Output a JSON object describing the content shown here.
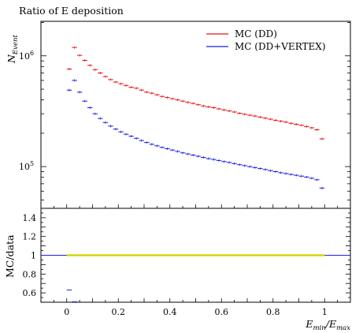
{
  "chart_data": {
    "title": "Ratio of E deposition",
    "panels": [
      {
        "name": "main",
        "type": "step",
        "ylabel": "N",
        "ylabel_sub": "Event",
        "yscale": "log",
        "ylim": [
          42000,
          2050000
        ],
        "yticks": [
          {
            "value": 100000,
            "label": "10",
            "exp": "5"
          },
          {
            "value": 1000000,
            "label": "10",
            "exp": "6"
          }
        ],
        "series": [
          {
            "name": "MC (DD)",
            "color": "#e8141b",
            "bins": [
              [
                0.0,
                0.02,
                760000
              ],
              [
                0.02,
                0.04,
                1190000
              ],
              [
                0.04,
                0.06,
                1010000
              ],
              [
                0.06,
                0.08,
                910000
              ],
              [
                0.08,
                0.1,
                820000
              ],
              [
                0.1,
                0.12,
                750000
              ],
              [
                0.12,
                0.14,
                700000
              ],
              [
                0.14,
                0.16,
                650000
              ],
              [
                0.16,
                0.18,
                610000
              ],
              [
                0.18,
                0.2,
                580000
              ],
              [
                0.2,
                0.22,
                560000
              ],
              [
                0.22,
                0.24,
                540000
              ],
              [
                0.24,
                0.26,
                520000
              ],
              [
                0.26,
                0.28,
                510000
              ],
              [
                0.28,
                0.3,
                490000
              ],
              [
                0.3,
                0.32,
                470000
              ],
              [
                0.32,
                0.34,
                460000
              ],
              [
                0.34,
                0.36,
                445000
              ],
              [
                0.36,
                0.38,
                430000
              ],
              [
                0.38,
                0.4,
                420000
              ],
              [
                0.4,
                0.42,
                410000
              ],
              [
                0.42,
                0.44,
                400000
              ],
              [
                0.44,
                0.46,
                390000
              ],
              [
                0.46,
                0.48,
                380000
              ],
              [
                0.48,
                0.5,
                372000
              ],
              [
                0.5,
                0.52,
                362000
              ],
              [
                0.52,
                0.54,
                353000
              ],
              [
                0.54,
                0.56,
                346000
              ],
              [
                0.56,
                0.58,
                340000
              ],
              [
                0.58,
                0.6,
                332000
              ],
              [
                0.6,
                0.62,
                325000
              ],
              [
                0.62,
                0.64,
                318000
              ],
              [
                0.64,
                0.66,
                311000
              ],
              [
                0.66,
                0.68,
                303000
              ],
              [
                0.68,
                0.7,
                297000
              ],
              [
                0.7,
                0.72,
                291000
              ],
              [
                0.72,
                0.74,
                286000
              ],
              [
                0.74,
                0.76,
                280000
              ],
              [
                0.76,
                0.78,
                274000
              ],
              [
                0.78,
                0.8,
                268000
              ],
              [
                0.8,
                0.82,
                262000
              ],
              [
                0.82,
                0.84,
                257000
              ],
              [
                0.84,
                0.86,
                252000
              ],
              [
                0.86,
                0.88,
                246000
              ],
              [
                0.88,
                0.9,
                241000
              ],
              [
                0.9,
                0.92,
                236000
              ],
              [
                0.92,
                0.94,
                230000
              ],
              [
                0.94,
                0.96,
                224000
              ],
              [
                0.96,
                0.98,
                215000
              ],
              [
                0.98,
                1.0,
                178000
              ]
            ]
          },
          {
            "name": "MC (DD+VERTEX)",
            "color": "#1a22e0",
            "bins": [
              [
                0.0,
                0.02,
                490000
              ],
              [
                0.02,
                0.04,
                600000
              ],
              [
                0.04,
                0.06,
                470000
              ],
              [
                0.06,
                0.08,
                390000
              ],
              [
                0.08,
                0.1,
                340000
              ],
              [
                0.1,
                0.12,
                300000
              ],
              [
                0.12,
                0.14,
                272000
              ],
              [
                0.14,
                0.16,
                250000
              ],
              [
                0.16,
                0.18,
                232000
              ],
              [
                0.18,
                0.2,
                218000
              ],
              [
                0.2,
                0.22,
                206000
              ],
              [
                0.22,
                0.24,
                196000
              ],
              [
                0.24,
                0.26,
                188000
              ],
              [
                0.26,
                0.28,
                180000
              ],
              [
                0.28,
                0.3,
                172000
              ],
              [
                0.3,
                0.32,
                165000
              ],
              [
                0.32,
                0.34,
                159000
              ],
              [
                0.34,
                0.36,
                154000
              ],
              [
                0.36,
                0.38,
                149000
              ],
              [
                0.38,
                0.4,
                145000
              ],
              [
                0.4,
                0.42,
                141000
              ],
              [
                0.42,
                0.44,
                137000
              ],
              [
                0.44,
                0.46,
                133000
              ],
              [
                0.46,
                0.48,
                130000
              ],
              [
                0.48,
                0.5,
                127000
              ],
              [
                0.5,
                0.52,
                124000
              ],
              [
                0.52,
                0.54,
                121000
              ],
              [
                0.54,
                0.56,
                118000
              ],
              [
                0.56,
                0.58,
                116000
              ],
              [
                0.58,
                0.6,
                113500
              ],
              [
                0.6,
                0.62,
                111000
              ],
              [
                0.62,
                0.64,
                109000
              ],
              [
                0.64,
                0.66,
                106500
              ],
              [
                0.66,
                0.68,
                104000
              ],
              [
                0.68,
                0.7,
                102000
              ],
              [
                0.7,
                0.72,
                100000
              ],
              [
                0.72,
                0.74,
                98000
              ],
              [
                0.74,
                0.76,
                96000
              ],
              [
                0.76,
                0.78,
                94000
              ],
              [
                0.78,
                0.8,
                92000
              ],
              [
                0.8,
                0.82,
                90000
              ],
              [
                0.82,
                0.84,
                88000
              ],
              [
                0.84,
                0.86,
                86500
              ],
              [
                0.86,
                0.88,
                85000
              ],
              [
                0.88,
                0.9,
                83500
              ],
              [
                0.9,
                0.92,
                82000
              ],
              [
                0.92,
                0.94,
                80500
              ],
              [
                0.94,
                0.96,
                78500
              ],
              [
                0.96,
                0.98,
                76000
              ],
              [
                0.98,
                1.0,
                64000
              ]
            ]
          }
        ],
        "legend": "top-right"
      },
      {
        "name": "ratio",
        "type": "step",
        "ylabel": "MC/data",
        "yscale": "linear",
        "ylim": [
          0.5,
          1.5
        ],
        "yticks": [
          {
            "value": 0.6,
            "label": "0.6"
          },
          {
            "value": 0.8,
            "label": "0.8"
          },
          {
            "value": 1.0,
            "label": "1"
          },
          {
            "value": 1.2,
            "label": "1.2"
          },
          {
            "value": 1.4,
            "label": "1.4"
          }
        ],
        "reference_line": 1.0,
        "reference_color": "#1a22e0",
        "band": {
          "x": [
            0.0,
            1.0
          ],
          "y": [
            0.99,
            1.01
          ],
          "color": "#d2d200"
        },
        "series": [
          {
            "name": "MC (DD+VERTEX)",
            "color": "#1a22e0",
            "bins": [
              [
                0.0,
                0.02,
                0.63
              ],
              [
                0.02,
                0.04,
                0.505
              ]
            ]
          }
        ]
      }
    ],
    "xlabel": "E",
    "xlabel_sub1": "min",
    "xlabel_sub2": "max",
    "xlim": [
      -0.1,
      1.1
    ],
    "xticks": [
      {
        "value": 0.0,
        "label": "0"
      },
      {
        "value": 0.2,
        "label": "0.2"
      },
      {
        "value": 0.4,
        "label": "0.4"
      },
      {
        "value": 0.6,
        "label": "0.6"
      },
      {
        "value": 0.8,
        "label": "0.8"
      },
      {
        "value": 1.0,
        "label": "1"
      }
    ]
  }
}
